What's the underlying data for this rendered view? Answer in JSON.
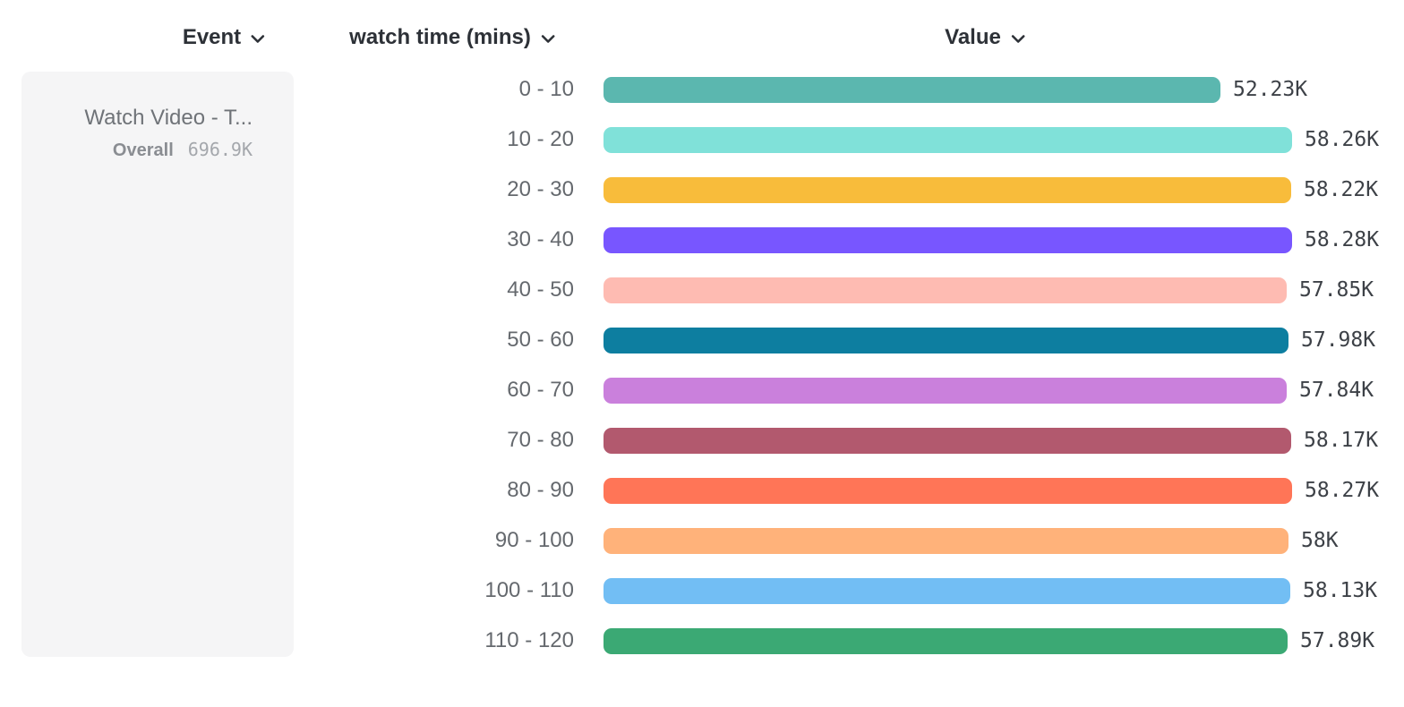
{
  "columns": {
    "event": {
      "label": "Event",
      "icon": "chevron-down-icon"
    },
    "breakdown": {
      "label": "watch time (mins)",
      "icon": "chevron-down-icon"
    },
    "value": {
      "label": "Value",
      "icon": "chevron-down-icon"
    }
  },
  "event_card": {
    "event_name": "Watch Video - T...",
    "overall_label": "Overall",
    "overall_value": "696.9K"
  },
  "chart_data": {
    "type": "bar",
    "orientation": "horizontal",
    "title": "",
    "xlabel": "Value",
    "ylabel": "watch time (mins)",
    "categories": [
      "0 - 10",
      "10 - 20",
      "20 - 30",
      "30 - 40",
      "40 - 50",
      "50 - 60",
      "60 - 70",
      "70 - 80",
      "80 - 90",
      "90 - 100",
      "100 - 110",
      "110 - 120"
    ],
    "values_thousands": [
      52.23,
      58.26,
      58.22,
      58.28,
      57.85,
      57.98,
      57.84,
      58.17,
      58.27,
      58.0,
      58.13,
      57.89
    ],
    "value_labels": [
      "52.23K",
      "58.26K",
      "58.22K",
      "58.28K",
      "57.85K",
      "57.98K",
      "57.84K",
      "58.17K",
      "58.27K",
      "58K",
      "58.13K",
      "57.89K"
    ],
    "bar_colors": [
      "#5BB7AF",
      "#80E1D9",
      "#F8BC3B",
      "#7856FF",
      "#FEBBB2",
      "#0D7EA0",
      "#CA80DC",
      "#B2596E",
      "#FF7557",
      "#FFB27A",
      "#72BEF4",
      "#3BA974"
    ],
    "xlim": [
      0,
      58.28
    ],
    "unit": "K",
    "grid": false,
    "legend_position": "left-card",
    "overall_total": "696.9K"
  },
  "colors": {
    "header_text": "#2d3137",
    "category_text": "#65696e",
    "value_text": "#3d4147",
    "card_background": "#f5f5f6",
    "page_background": "#ffffff"
  }
}
